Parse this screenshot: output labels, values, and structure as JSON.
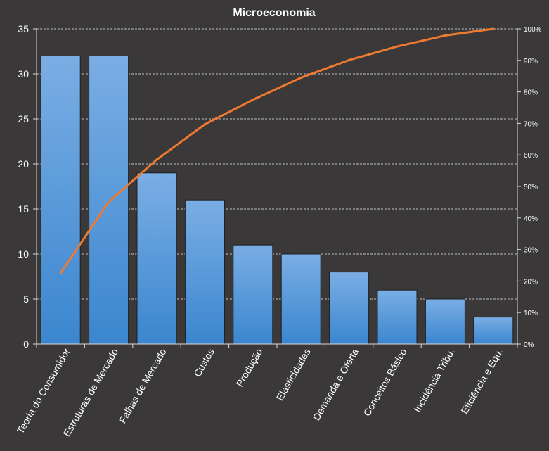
{
  "chart_data": {
    "type": "bar",
    "title": "Microeconomia",
    "categories": [
      "Teoria do Consumidor",
      "Estruturas de Mercado",
      "Falhas de Mercado",
      "Custos",
      "Produção",
      "Elasticidades",
      "Demanda e Oferta",
      "Conceitos Básico",
      "Incidência Tribu.",
      "Eficiência e Equ."
    ],
    "series": [
      {
        "type": "bar",
        "values": [
          32,
          32,
          19,
          16,
          11,
          10,
          8,
          6,
          5,
          3
        ]
      },
      {
        "type": "line",
        "axis": "right",
        "values": [
          22.5,
          45.1,
          58.5,
          69.7,
          77.5,
          84.5,
          90.1,
          94.4,
          97.9,
          100
        ]
      }
    ],
    "xlabel": "",
    "ylabel": "",
    "ylim": [
      0,
      35
    ],
    "yticks": [
      "0",
      "5",
      "10",
      "15",
      "20",
      "25",
      "30",
      "35"
    ],
    "y2lim": [
      0,
      100
    ],
    "y2ticks": [
      "0%",
      "10%",
      "20%",
      "30%",
      "40%",
      "50%",
      "60%",
      "70%",
      "80%",
      "90%",
      "100%"
    ],
    "grid": "horizontal dashed",
    "colors": {
      "background": "#3a3838",
      "bar_top": "#7aaee4",
      "bar_bottom": "#3b86cf",
      "bar_edge": "#1f1f1f",
      "line": "#ee7a2f",
      "grid": "#bfbfbf",
      "text": "#ffffff"
    }
  }
}
